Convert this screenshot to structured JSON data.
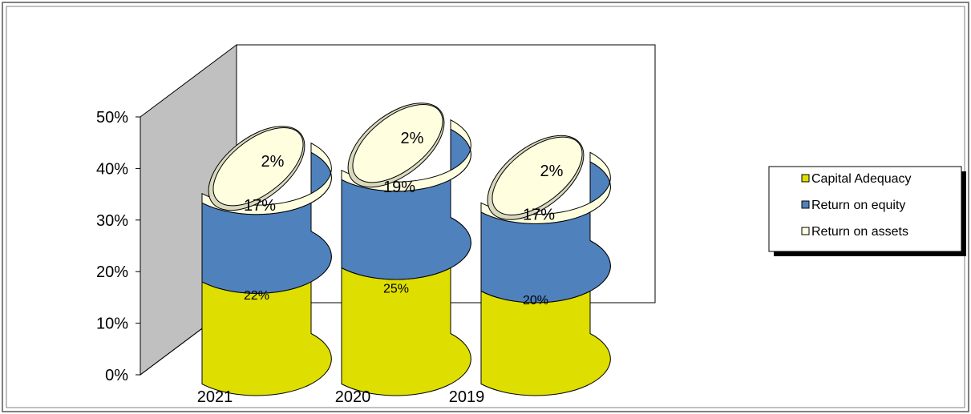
{
  "chart_data": {
    "type": "bar",
    "subtype": "stacked-3d-cylinder",
    "categories": [
      "2021",
      "2020",
      "2019"
    ],
    "series": [
      {
        "name": "Capital Adequacy",
        "values": [
          22,
          25,
          20
        ],
        "labels": [
          "22%",
          "25%",
          "20%"
        ],
        "color": "#dede00"
      },
      {
        "name": "Return on equity",
        "values": [
          17,
          19,
          17
        ],
        "labels": [
          "17%",
          "19%",
          "17%"
        ],
        "color": "#4f81bd"
      },
      {
        "name": "Return on assets",
        "values": [
          2,
          2,
          2
        ],
        "labels": [
          "2%",
          "2%",
          "2%"
        ],
        "color": "#ffffe0"
      }
    ],
    "yticks": [
      "0%",
      "10%",
      "20%",
      "30%",
      "40%",
      "50%"
    ],
    "ylim": [
      0,
      50
    ],
    "grid": false,
    "legend": "right",
    "colors": {
      "wall": "#c0c0c0",
      "frame": "#808080"
    }
  }
}
